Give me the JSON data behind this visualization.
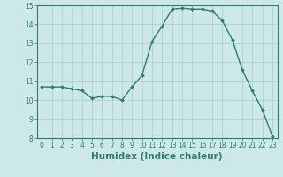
{
  "x": [
    0,
    1,
    2,
    3,
    4,
    5,
    6,
    7,
    8,
    9,
    10,
    11,
    12,
    13,
    14,
    15,
    16,
    17,
    18,
    19,
    20,
    21,
    22,
    23
  ],
  "y": [
    10.7,
    10.7,
    10.7,
    10.6,
    10.5,
    10.1,
    10.2,
    10.2,
    10.0,
    10.7,
    11.3,
    13.1,
    13.9,
    14.8,
    14.85,
    14.8,
    14.8,
    14.7,
    14.2,
    13.2,
    11.6,
    10.5,
    9.5,
    8.1
  ],
  "line_color": "#2e7d6b",
  "marker": "D",
  "marker_size": 2.0,
  "bg_color": "#cce8e8",
  "grid_color": "#aacccc",
  "xlabel": "Humidex (Indice chaleur)",
  "ylim": [
    8,
    15
  ],
  "xlim_min": -0.5,
  "xlim_max": 23.5,
  "yticks": [
    8,
    9,
    10,
    11,
    12,
    13,
    14,
    15
  ],
  "xticks": [
    0,
    1,
    2,
    3,
    4,
    5,
    6,
    7,
    8,
    9,
    10,
    11,
    12,
    13,
    14,
    15,
    16,
    17,
    18,
    19,
    20,
    21,
    22,
    23
  ],
  "tick_label_fontsize": 5.5,
  "xlabel_fontsize": 7.5,
  "line_width": 1.0
}
